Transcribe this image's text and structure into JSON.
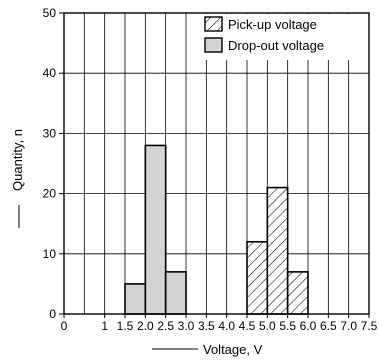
{
  "chart_data": {
    "type": "bar",
    "xlabel": "Voltage, V",
    "ylabel": "Quantity, n",
    "xlim": [
      0,
      7.5
    ],
    "ylim": [
      0,
      50
    ],
    "grid": true,
    "x_ticks": [
      "0",
      "1",
      "1.5",
      "2.0",
      "2.5",
      "3.0",
      "3.5",
      "4.0",
      "4.5",
      "5.0",
      "5.5",
      "6.0",
      "6.5",
      "7.0",
      "7.5"
    ],
    "y_ticks": [
      0,
      10,
      20,
      30,
      40,
      50
    ],
    "legend_position": "top-right",
    "series": [
      {
        "name": "Pick-up voltage",
        "pattern": "hatched",
        "bins": [
          {
            "from": 4.5,
            "to": 5.0,
            "value": 12
          },
          {
            "from": 5.0,
            "to": 5.5,
            "value": 21
          },
          {
            "from": 5.5,
            "to": 6.0,
            "value": 7
          }
        ]
      },
      {
        "name": "Drop-out voltage",
        "color": "#d3d3d3",
        "pattern": "solid",
        "bins": [
          {
            "from": 1.5,
            "to": 2.0,
            "value": 5
          },
          {
            "from": 2.0,
            "to": 2.5,
            "value": 28
          },
          {
            "from": 2.5,
            "to": 3.0,
            "value": 7
          }
        ]
      }
    ]
  }
}
